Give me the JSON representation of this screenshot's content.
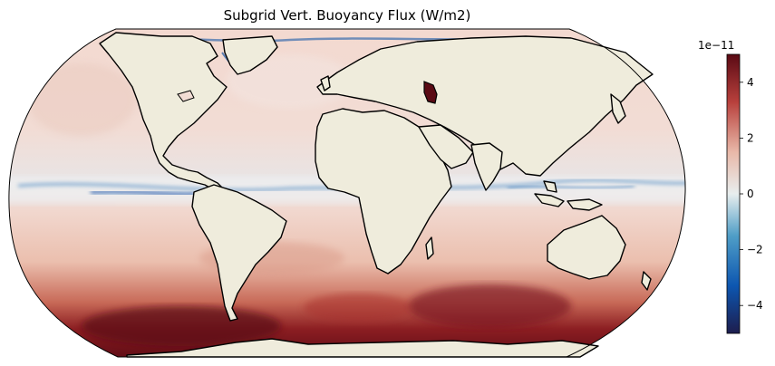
{
  "figure": {
    "title": "Subgrid Vert. Buoyancy Flux (W/m2)"
  },
  "map": {
    "projection": "robinson",
    "land_color": "#efecdc",
    "coastline_color": "#000000"
  },
  "colorbar": {
    "scale_label": "1e−11",
    "ticks": [
      {
        "value": 4,
        "label": "4"
      },
      {
        "value": 2,
        "label": "2"
      },
      {
        "value": 0,
        "label": "0"
      },
      {
        "value": -2,
        "label": "−2"
      },
      {
        "value": -4,
        "label": "−4"
      }
    ],
    "range": [
      -5,
      5
    ],
    "colors": [
      "#1d1d4d",
      "#0d56b0",
      "#4f9ec7",
      "#e8eeee",
      "#e8b8a8",
      "#b8403c",
      "#5a0a14"
    ]
  }
}
